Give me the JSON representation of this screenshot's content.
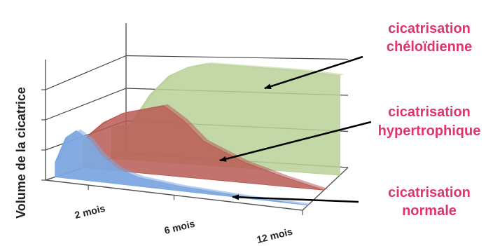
{
  "chart_data": {
    "type": "area",
    "ylabel": "Volume de la cicatrice",
    "xlabel": "",
    "x_ticks": [
      "2 mois",
      "6 mois",
      "12 mois"
    ],
    "grid": true,
    "series": [
      {
        "name": "cicatrisation chéloïdienne",
        "label_lines": [
          "cicatrisation",
          "chéloïdienne"
        ],
        "color": "#b8d197",
        "points": [
          [
            0,
            0.3
          ],
          [
            1,
            0.35
          ],
          [
            2,
            0.65
          ],
          [
            3,
            0.85
          ],
          [
            4,
            0.95
          ],
          [
            5,
            1.0
          ],
          [
            6,
            1.0
          ],
          [
            8,
            1.0
          ],
          [
            10,
            1.0
          ],
          [
            12,
            0.98
          ]
        ]
      },
      {
        "name": "cicatrisation hypertrophique",
        "label_lines": [
          "cicatrisation",
          "hypertrophique"
        ],
        "color": "#b85a54",
        "points": [
          [
            0,
            0.3
          ],
          [
            1,
            0.5
          ],
          [
            2,
            0.62
          ],
          [
            3,
            0.68
          ],
          [
            4,
            0.74
          ],
          [
            5,
            0.6
          ],
          [
            6,
            0.4
          ],
          [
            8,
            0.22
          ],
          [
            10,
            0.1
          ],
          [
            12,
            0.0
          ]
        ]
      },
      {
        "name": "cicatrisation normale",
        "label_lines": [
          "cicatrisation",
          "normale"
        ],
        "color": "#7ea8e0",
        "points": [
          [
            0,
            0.2
          ],
          [
            0.5,
            0.55
          ],
          [
            1,
            0.66
          ],
          [
            1.6,
            0.56
          ],
          [
            2.2,
            0.36
          ],
          [
            3,
            0.2
          ],
          [
            4,
            0.12
          ],
          [
            6,
            0.06
          ],
          [
            9,
            0.02
          ],
          [
            12,
            0.0
          ]
        ]
      }
    ],
    "annotation_color": "#e0356a"
  }
}
